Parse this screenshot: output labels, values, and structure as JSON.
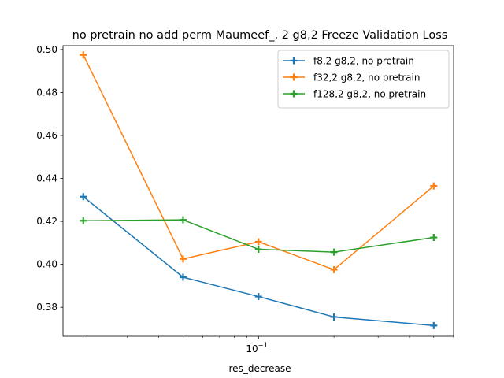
{
  "chart_data": {
    "type": "line",
    "title": "no pretrain no add perm Maumeef_, 2 g8,2 Freeze Validation Loss",
    "xlabel": "res_decrease",
    "ylabel": "",
    "x_scale": "log",
    "x": [
      0.02,
      0.05,
      0.1,
      0.2,
      0.5
    ],
    "xlim": [
      0.0166,
      0.6
    ],
    "ylim": [
      0.3665,
      0.5018
    ],
    "x_major_ticks": [
      {
        "value": 0.1,
        "label": "10^-1"
      }
    ],
    "x_minor_ticks": [
      0.02,
      0.03,
      0.04,
      0.05,
      0.06,
      0.07,
      0.08,
      0.09,
      0.2,
      0.3,
      0.4,
      0.5,
      0.6
    ],
    "y_ticks": [
      {
        "value": 0.38,
        "label": "0.38"
      },
      {
        "value": 0.4,
        "label": "0.40"
      },
      {
        "value": 0.42,
        "label": "0.42"
      },
      {
        "value": 0.44,
        "label": "0.44"
      },
      {
        "value": 0.46,
        "label": "0.46"
      },
      {
        "value": 0.48,
        "label": "0.48"
      },
      {
        "value": 0.5,
        "label": "0.50"
      }
    ],
    "grid": false,
    "legend_position": "upper right",
    "marker": "plus",
    "series": [
      {
        "name": "f8,2 g8,2, no pretrain",
        "color": "#1f77b4",
        "values": [
          0.4315,
          0.394,
          0.385,
          0.3755,
          0.3715
        ]
      },
      {
        "name": "f32,2 g8,2, no pretrain",
        "color": "#ff7f0e",
        "values": [
          0.4975,
          0.4025,
          0.4105,
          0.3975,
          0.4365
        ]
      },
      {
        "name": "f128,2 g8,2, no pretrain",
        "color": "#2ca02c",
        "values": [
          0.4203,
          0.4207,
          0.407,
          0.4057,
          0.4125
        ]
      }
    ]
  }
}
